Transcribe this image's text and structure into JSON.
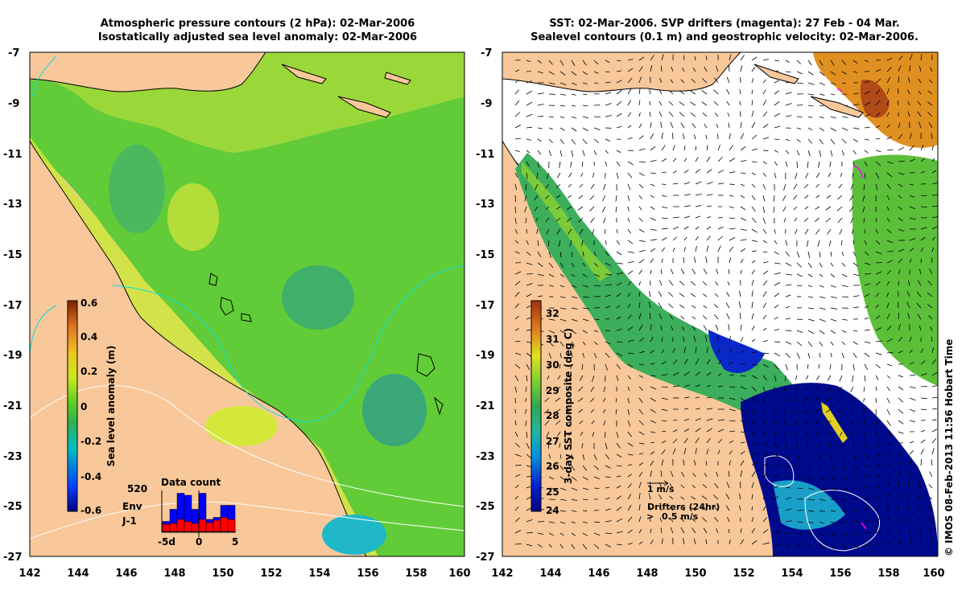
{
  "left_panel": {
    "title_line1": "Atmospheric pressure contours (2 hPa): 02-Mar-2006",
    "title_line2": "Isostatically adjusted sea level anomaly: 02-Mar-2006",
    "y_ticks": [
      "-7",
      "-9",
      "-11",
      "-13",
      "-15",
      "-17",
      "-19",
      "-21",
      "-23",
      "-25",
      "-27"
    ],
    "x_ticks": [
      "142",
      "144",
      "146",
      "148",
      "150",
      "152",
      "154",
      "156",
      "158",
      "160"
    ],
    "colorbar": {
      "label": "Sea level anomaly (m)",
      "ticks": [
        "0.6",
        "0.4",
        "0.2",
        "0",
        "-0.2",
        "-0.4",
        "-0.6"
      ]
    },
    "inset": {
      "title": "Data count",
      "max_label": "520",
      "env_label": "Env",
      "j1_label": "J-1",
      "x_labels": [
        "-5d",
        "0",
        "5"
      ],
      "env_color": "#0000ff",
      "j1_color": "#ff0000",
      "env_values": [
        0.25,
        0.55,
        0.95,
        0.9,
        0.55,
        0.95,
        0.3,
        0.35,
        0.65,
        0.65
      ],
      "j1_values": [
        0.18,
        0.2,
        0.3,
        0.25,
        0.2,
        0.3,
        0.22,
        0.28,
        0.35,
        0.3
      ]
    }
  },
  "right_panel": {
    "title_line1": "SST: 02-Mar-2006. SVP drifters (magenta): 27 Feb - 04 Mar.",
    "title_line2": "Sealevel contours (0.1 m) and geostrophic velocity: 02-Mar-2006.",
    "y_ticks": [
      "-7",
      "-9",
      "-11",
      "-13",
      "-15",
      "-17",
      "-19",
      "-21",
      "-23",
      "-25",
      "-27"
    ],
    "x_ticks": [
      "142",
      "144",
      "146",
      "148",
      "150",
      "152",
      "154",
      "156",
      "158",
      "160"
    ],
    "colorbar": {
      "label": "3-day SST composite (deg C)",
      "ticks": [
        "32",
        "31",
        "30",
        "29",
        "28",
        "27",
        "26",
        "25",
        "24"
      ]
    },
    "scale_label": "1 m/s",
    "drifters_label": "Drifters (24hr)",
    "drifter_speed_label": "0.5 m/s",
    "drifter_color": "#ff00ff"
  },
  "credit": "© IMOS 08-Feb-2013 11:56 Hobart Time",
  "colors": {
    "land": "#f8c89a",
    "ocean_green": "#6cd23a",
    "coast_yellow": "#d8ee3a",
    "mid_green": "#3eb86a"
  }
}
